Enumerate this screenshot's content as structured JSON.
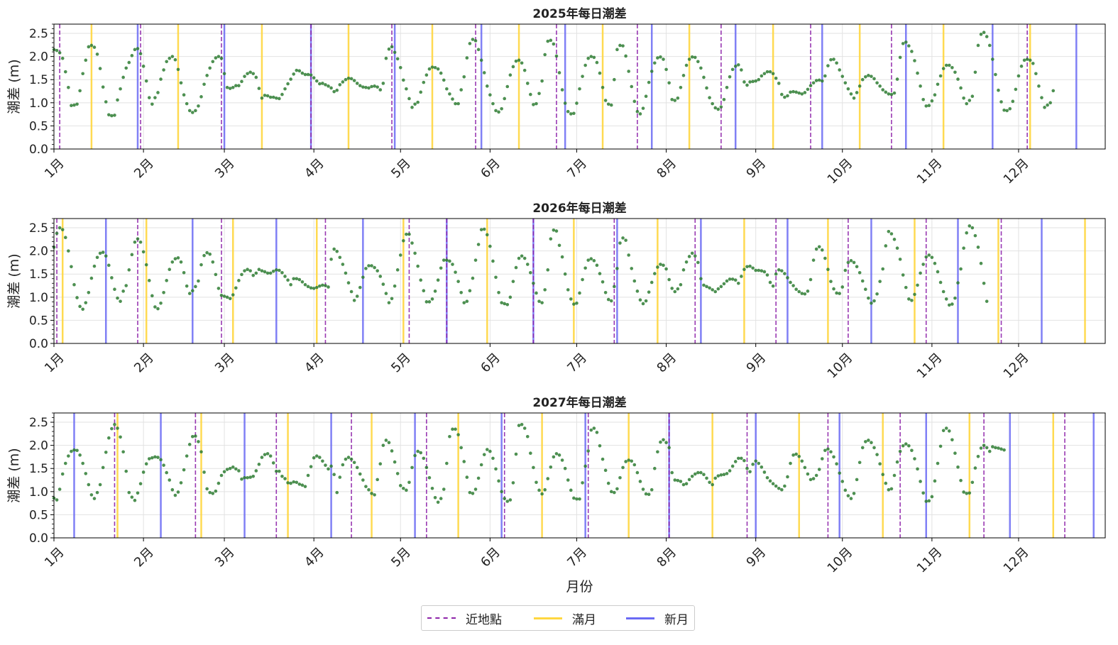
{
  "figure": {
    "xlabel": "月份",
    "legend": {
      "perigee": "近地點",
      "full_moon": "滿月",
      "new_moon": "新月"
    },
    "colors": {
      "points": "#2e7d32",
      "perigee": "#8e24aa",
      "full_moon": "#ffd740",
      "new_moon": "#6a6af4",
      "grid": "#e2e2e2"
    }
  },
  "chart_data": [
    {
      "type": "scatter",
      "title": "2025年每日潮差",
      "ylabel": "潮差 (m)",
      "xlabel": "",
      "ylim": [
        0,
        2.7
      ],
      "yticks": [
        "0.0",
        "0.5",
        "1.0",
        "1.5",
        "2.0",
        "2.5"
      ],
      "month_labels": [
        "1月",
        "2月",
        "3月",
        "4月",
        "5月",
        "6月",
        "7月",
        "8月",
        "9月",
        "10月",
        "11月",
        "12月"
      ],
      "days_in_year": 365,
      "full_moon_days": [
        13,
        43,
        72,
        102,
        131,
        161,
        190,
        220,
        249,
        279,
        308,
        338
      ],
      "new_moon_days": [
        29,
        59,
        89,
        118,
        148,
        177,
        207,
        236,
        266,
        295,
        325,
        354
      ],
      "perigee_days": [
        2,
        30,
        58,
        89,
        117,
        146,
        174,
        202,
        231,
        262,
        290,
        337
      ],
      "daily_range": [
        2.15,
        2.13,
        2.08,
        1.96,
        1.67,
        1.33,
        0.94,
        0.95,
        0.97,
        1.26,
        1.63,
        1.92,
        2.21,
        2.24,
        2.2,
        2.05,
        1.74,
        1.34,
        1.02,
        0.74,
        0.72,
        0.73,
        1.06,
        1.3,
        1.55,
        1.75,
        1.87,
        2.02,
        2.15,
        2.17,
        2.06,
        1.79,
        1.47,
        1.11,
        0.97,
        1.11,
        1.22,
        1.51,
        1.71,
        1.89,
        1.96,
        2.0,
        1.93,
        1.72,
        1.43,
        1.17,
        0.98,
        0.83,
        0.79,
        0.83,
        0.93,
        1.13,
        1.4,
        1.59,
        1.75,
        1.89,
        1.97,
        2.0,
        1.96,
        1.63,
        1.33,
        1.31,
        1.33,
        1.37,
        1.37,
        1.46,
        1.57,
        1.63,
        1.66,
        1.63,
        1.55,
        1.31,
        1.1,
        1.16,
        1.15,
        1.12,
        1.12,
        1.1,
        1.09,
        1.18,
        1.3,
        1.41,
        1.51,
        1.62,
        1.7,
        1.69,
        1.64,
        1.61,
        1.61,
        1.6,
        1.54,
        1.47,
        1.41,
        1.42,
        1.39,
        1.36,
        1.32,
        1.24,
        1.27,
        1.39,
        1.45,
        1.5,
        1.53,
        1.52,
        1.48,
        1.42,
        1.37,
        1.34,
        1.33,
        1.32,
        1.35,
        1.36,
        1.34,
        1.28,
        1.42,
        1.96,
        2.16,
        2.21,
        2.09,
        1.95,
        1.76,
        1.49,
        1.3,
        1.09,
        0.9,
        0.97,
        1.01,
        1.23,
        1.44,
        1.6,
        1.73,
        1.77,
        1.76,
        1.73,
        1.64,
        1.49,
        1.3,
        1.19,
        1.08,
        0.98,
        0.98,
        1.28,
        1.56,
        1.97,
        2.28,
        2.37,
        2.34,
        2.15,
        1.92,
        1.65,
        1.36,
        1.17,
        0.98,
        0.83,
        0.8,
        0.87,
        1.09,
        1.35,
        1.6,
        1.78,
        1.9,
        1.92,
        1.86,
        1.7,
        1.42,
        1.18,
        0.96,
        0.98,
        1.2,
        1.47,
        2.04,
        2.33,
        2.35,
        2.27,
        2.01,
        1.65,
        1.28,
        0.99,
        0.81,
        0.76,
        0.77,
        0.99,
        1.3,
        1.57,
        1.81,
        1.96,
        2.0,
        1.98,
        1.87,
        1.64,
        1.33,
        1.05,
        0.97,
        0.95,
        1.5,
        2.15,
        2.24,
        2.23,
        2.01,
        1.68,
        1.35,
        1.03,
        0.81,
        0.76,
        0.88,
        1.14,
        1.44,
        1.68,
        1.86,
        1.97,
        1.99,
        1.94,
        1.72,
        1.43,
        1.07,
        1.05,
        1.1,
        1.33,
        1.59,
        1.81,
        1.94,
        1.99,
        1.98,
        1.89,
        1.75,
        1.55,
        1.32,
        1.11,
        0.98,
        0.89,
        0.86,
        0.91,
        1.07,
        1.33,
        1.56,
        1.72,
        1.79,
        1.82,
        1.71,
        1.45,
        1.38,
        1.45,
        1.46,
        1.47,
        1.5,
        1.58,
        1.63,
        1.67,
        1.67,
        1.63,
        1.53,
        1.42,
        1.18,
        1.12,
        1.15,
        1.23,
        1.24,
        1.23,
        1.21,
        1.19,
        1.22,
        1.29,
        1.37,
        1.43,
        1.48,
        1.49,
        1.47,
        1.58,
        1.8,
        1.93,
        1.94,
        1.86,
        1.71,
        1.57,
        1.43,
        1.3,
        1.19,
        1.1,
        1.22,
        1.36,
        1.5,
        1.56,
        1.59,
        1.57,
        1.52,
        1.43,
        1.36,
        1.28,
        1.23,
        1.19,
        1.18,
        1.21,
        1.51,
        1.98,
        2.28,
        2.31,
        2.23,
        2.11,
        1.91,
        1.64,
        1.36,
        1.07,
        0.93,
        0.94,
        1.04,
        1.17,
        1.4,
        1.58,
        1.74,
        1.81,
        1.81,
        1.76,
        1.66,
        1.51,
        1.32,
        1.1,
        0.98,
        1.05,
        1.14,
        1.66,
        2.24,
        2.48,
        2.52,
        2.43,
        2.24,
        1.94,
        1.61,
        1.27,
        1.02,
        0.84,
        0.83,
        0.87,
        1.03,
        1.29,
        1.58,
        1.79,
        1.92,
        1.94,
        1.92,
        1.85,
        1.63,
        1.36,
        1.11,
        0.9,
        0.95,
        1.0,
        1.26
      ]
    },
    {
      "type": "scatter",
      "title": "2026年每日潮差",
      "ylabel": "潮差 (m)",
      "xlabel": "",
      "ylim": [
        0,
        2.7
      ],
      "yticks": [
        "0.0",
        "0.5",
        "1.0",
        "1.5",
        "2.0",
        "2.5"
      ],
      "month_labels": [
        "1月",
        "2月",
        "3月",
        "4月",
        "5月",
        "6月",
        "7月",
        "8月",
        "9月",
        "10月",
        "11月",
        "12月"
      ],
      "days_in_year": 365,
      "full_moon_days": [
        3,
        32,
        62,
        91,
        121,
        150,
        180,
        209,
        239,
        268,
        298,
        327,
        357
      ],
      "new_moon_days": [
        18,
        48,
        77,
        107,
        136,
        166,
        195,
        224,
        254,
        283,
        313,
        342
      ],
      "perigee_days": [
        1,
        29,
        58,
        94,
        123,
        136,
        166,
        194,
        222,
        250,
        275,
        302,
        328
      ],
      "daily_range": [
        2.08,
        2.38,
        2.5,
        2.46,
        2.29,
        2.0,
        1.66,
        1.27,
        0.99,
        0.8,
        0.74,
        0.88,
        1.1,
        1.41,
        1.67,
        1.86,
        1.95,
        1.97,
        1.89,
        1.69,
        1.42,
        1.17,
        0.98,
        0.91,
        1.13,
        1.25,
        1.59,
        1.92,
        2.19,
        2.26,
        2.19,
        1.98,
        1.7,
        1.36,
        1.03,
        0.79,
        0.75,
        0.87,
        1.1,
        1.36,
        1.6,
        1.76,
        1.83,
        1.85,
        1.76,
        1.53,
        1.24,
        1.08,
        1.14,
        1.23,
        1.35,
        1.7,
        1.9,
        1.96,
        1.93,
        1.76,
        1.49,
        1.19,
        1.04,
        1.02,
        1.0,
        0.97,
        1.05,
        1.2,
        1.36,
        1.49,
        1.57,
        1.6,
        1.57,
        1.47,
        1.52,
        1.6,
        1.57,
        1.55,
        1.52,
        1.52,
        1.56,
        1.59,
        1.58,
        1.53,
        1.45,
        1.37,
        1.27,
        1.4,
        1.4,
        1.38,
        1.33,
        1.27,
        1.23,
        1.2,
        1.19,
        1.21,
        1.24,
        1.26,
        1.25,
        1.22,
        1.82,
        2.04,
        1.99,
        1.86,
        1.71,
        1.52,
        1.31,
        1.12,
        0.93,
        1.02,
        1.21,
        1.43,
        1.62,
        1.68,
        1.68,
        1.64,
        1.57,
        1.45,
        1.28,
        1.08,
        0.88,
        0.97,
        1.24,
        1.59,
        1.91,
        2.22,
        2.36,
        2.36,
        2.17,
        1.95,
        1.67,
        1.37,
        1.14,
        0.9,
        0.9,
        0.96,
        1.13,
        1.37,
        1.63,
        1.8,
        1.8,
        1.78,
        1.71,
        1.54,
        1.34,
        1.1,
        0.88,
        0.91,
        1.14,
        1.41,
        1.8,
        2.14,
        2.46,
        2.47,
        2.35,
        2.1,
        1.78,
        1.43,
        1.1,
        0.88,
        0.86,
        0.84,
        1.0,
        1.34,
        1.64,
        1.84,
        1.89,
        1.84,
        1.71,
        1.53,
        1.3,
        1.09,
        0.91,
        0.88,
        1.16,
        1.59,
        2.26,
        2.45,
        2.43,
        2.12,
        1.87,
        1.5,
        1.16,
        0.96,
        0.85,
        0.87,
        1.09,
        1.38,
        1.63,
        1.8,
        1.83,
        1.79,
        1.69,
        1.51,
        1.33,
        1.1,
        0.95,
        0.92,
        1.23,
        1.62,
        2.17,
        2.28,
        2.23,
        1.91,
        1.62,
        1.35,
        1.13,
        0.94,
        0.86,
        0.92,
        1.11,
        1.32,
        1.51,
        1.65,
        1.71,
        1.69,
        1.61,
        1.38,
        1.19,
        1.12,
        1.18,
        1.27,
        1.59,
        1.76,
        1.88,
        1.95,
        1.89,
        1.75,
        1.4,
        1.26,
        1.23,
        1.2,
        1.16,
        1.12,
        1.18,
        1.23,
        1.29,
        1.35,
        1.39,
        1.39,
        1.37,
        1.3,
        1.45,
        1.6,
        1.66,
        1.67,
        1.63,
        1.58,
        1.58,
        1.57,
        1.55,
        1.48,
        1.32,
        1.24,
        1.5,
        1.59,
        1.57,
        1.51,
        1.42,
        1.32,
        1.25,
        1.17,
        1.12,
        1.08,
        1.07,
        1.13,
        1.38,
        1.8,
        2.04,
        2.09,
        2.02,
        1.84,
        1.6,
        1.34,
        1.18,
        1.09,
        1.08,
        1.22,
        1.58,
        1.75,
        1.79,
        1.75,
        1.66,
        1.53,
        1.35,
        1.17,
        0.98,
        0.87,
        0.92,
        1.07,
        1.34,
        1.61,
        2.11,
        2.42,
        2.37,
        2.25,
        2.06,
        1.82,
        1.48,
        1.21,
        0.96,
        0.93,
        1.06,
        1.26,
        1.52,
        1.71,
        1.87,
        1.91,
        1.86,
        1.73,
        1.55,
        1.32,
        1.12,
        0.96,
        0.83,
        0.85,
        0.98,
        1.31,
        1.61,
        2.06,
        2.39,
        2.54,
        2.5,
        2.33,
        2.08,
        1.73,
        1.3,
        0.91
      ]
    },
    {
      "type": "scatter",
      "title": "2027年每日潮差",
      "ylabel": "潮差 (m)",
      "xlabel": "月份",
      "ylim": [
        0,
        2.7
      ],
      "yticks": [
        "0.0",
        "0.5",
        "1.0",
        "1.5",
        "2.0",
        "2.5"
      ],
      "month_labels": [
        "1月",
        "2月",
        "3月",
        "4月",
        "5月",
        "6月",
        "7月",
        "8月",
        "9月",
        "10月",
        "11月",
        "12月"
      ],
      "days_in_year": 365,
      "full_moon_days": [
        22,
        51,
        81,
        110,
        140,
        169,
        199,
        228,
        258,
        287,
        317,
        346
      ],
      "new_moon_days": [
        7,
        37,
        66,
        96,
        125,
        155,
        184,
        213,
        243,
        272,
        302,
        331,
        360
      ],
      "perigee_days": [
        21,
        49,
        77,
        103,
        129,
        156,
        185,
        213,
        240,
        268,
        293,
        322,
        350
      ],
      "daily_range": [
        0.86,
        0.82,
        1.05,
        1.38,
        1.61,
        1.77,
        1.87,
        1.9,
        1.89,
        1.79,
        1.61,
        1.39,
        1.15,
        0.93,
        0.85,
        0.98,
        1.15,
        1.52,
        1.85,
        2.16,
        2.36,
        2.45,
        2.37,
        2.18,
        1.86,
        1.44,
        0.98,
        0.88,
        0.81,
        0.97,
        1.17,
        1.42,
        1.6,
        1.71,
        1.73,
        1.75,
        1.74,
        1.69,
        1.57,
        1.41,
        1.25,
        1.04,
        0.92,
        0.99,
        1.19,
        1.47,
        1.77,
        2.02,
        2.19,
        2.2,
        2.08,
        1.86,
        1.42,
        1.06,
        0.98,
        0.96,
        1.01,
        1.18,
        1.35,
        1.43,
        1.48,
        1.5,
        1.53,
        1.49,
        1.45,
        1.27,
        1.3,
        1.3,
        1.31,
        1.33,
        1.45,
        1.59,
        1.74,
        1.8,
        1.82,
        1.77,
        1.62,
        1.44,
        1.44,
        1.33,
        1.28,
        1.19,
        1.18,
        1.21,
        1.2,
        1.16,
        1.14,
        1.11,
        1.35,
        1.54,
        1.73,
        1.77,
        1.74,
        1.66,
        1.57,
        1.49,
        1.55,
        1.37,
        0.98,
        1.31,
        1.58,
        1.7,
        1.74,
        1.7,
        1.63,
        1.52,
        1.38,
        1.25,
        1.11,
        1.04,
        0.96,
        0.93,
        1.26,
        1.6,
        2.0,
        2.11,
        2.06,
        1.88,
        1.64,
        1.39,
        1.13,
        1.07,
        1.03,
        1.2,
        1.52,
        1.78,
        1.87,
        1.84,
        1.72,
        1.52,
        1.3,
        1.07,
        0.87,
        0.77,
        0.85,
        1.05,
        1.61,
        2.19,
        2.35,
        2.35,
        2.23,
        1.95,
        1.65,
        1.31,
        0.98,
        0.96,
        1.05,
        1.29,
        1.58,
        1.8,
        1.91,
        1.87,
        1.72,
        1.49,
        1.23,
        1.0,
        0.85,
        0.79,
        0.82,
        1.19,
        1.81,
        2.43,
        2.45,
        2.37,
        2.19,
        1.83,
        1.52,
        1.2,
        1.03,
        0.95,
        1.04,
        1.28,
        1.53,
        1.75,
        1.82,
        1.79,
        1.68,
        1.5,
        1.25,
        1.03,
        0.86,
        0.84,
        0.84,
        1.19,
        1.55,
        1.88,
        2.33,
        2.37,
        2.28,
        1.99,
        1.7,
        1.46,
        1.18,
        1.0,
        0.98,
        1.06,
        1.3,
        1.52,
        1.65,
        1.68,
        1.66,
        1.58,
        1.41,
        1.22,
        1.05,
        0.95,
        0.94,
        1.04,
        1.5,
        1.86,
        2.07,
        2.12,
        2.06,
        1.95,
        1.41,
        1.25,
        1.24,
        1.22,
        1.15,
        1.17,
        1.26,
        1.33,
        1.38,
        1.41,
        1.41,
        1.37,
        1.29,
        1.2,
        1.15,
        1.29,
        1.34,
        1.36,
        1.37,
        1.39,
        1.45,
        1.55,
        1.65,
        1.72,
        1.72,
        1.67,
        1.5,
        1.43,
        1.59,
        1.66,
        1.61,
        1.53,
        1.42,
        1.3,
        1.23,
        1.17,
        1.12,
        1.07,
        1.04,
        1.12,
        1.32,
        1.61,
        1.79,
        1.81,
        1.76,
        1.66,
        1.52,
        1.38,
        1.26,
        1.28,
        1.35,
        1.48,
        1.71,
        1.89,
        1.92,
        1.86,
        1.75,
        1.6,
        1.4,
        1.22,
        1.03,
        0.91,
        0.85,
        0.96,
        1.26,
        1.63,
        1.95,
        2.08,
        2.11,
        2.06,
        1.95,
        1.8,
        1.6,
        1.37,
        1.18,
        1.04,
        1.06,
        1.35,
        1.64,
        1.87,
        1.99,
        2.03,
        1.99,
        1.89,
        1.71,
        1.49,
        1.22,
        0.97,
        0.79,
        0.8,
        0.89,
        1.23,
        1.61,
        1.98,
        2.32,
        2.37,
        2.31,
        2.12,
        1.83,
        1.53,
        1.24,
        0.99,
        0.96,
        0.97,
        1.2,
        1.51,
        1.76,
        1.94,
        2.0,
        1.95,
        1.87,
        1.97,
        1.95,
        1.94,
        1.92,
        1.9
      ]
    }
  ]
}
